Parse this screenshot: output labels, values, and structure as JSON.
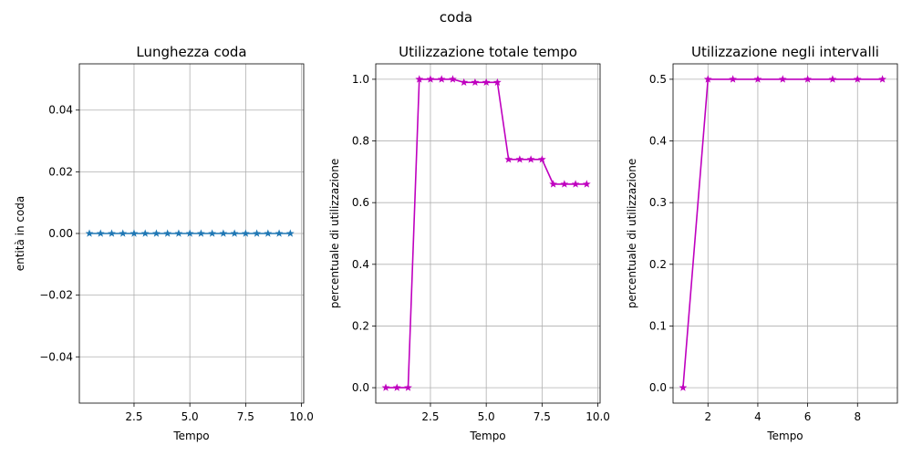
{
  "figure_title": "coda",
  "chart_data": [
    {
      "type": "line",
      "title": "Lunghezza coda",
      "xlabel": "Tempo",
      "ylabel": "entità in coda",
      "xlim": [
        0.05,
        10.1
      ],
      "ylim": [
        -0.055,
        0.055
      ],
      "xticks": [
        2.5,
        5.0,
        7.5,
        10.0
      ],
      "xtick_labels": [
        "2.5",
        "5.0",
        "7.5",
        "10.0"
      ],
      "yticks": [
        -0.04,
        -0.02,
        0.0,
        0.02,
        0.04
      ],
      "ytick_labels": [
        "−0.04",
        "−0.02",
        "0.00",
        "0.02",
        "0.04"
      ],
      "grid": true,
      "color": "#1f77b4",
      "marker": "star",
      "series": [
        {
          "x": [
            0.5,
            1.0,
            1.5,
            2.0,
            2.5,
            3.0,
            3.5,
            4.0,
            4.5,
            5.0,
            5.5,
            6.0,
            6.5,
            7.0,
            7.5,
            8.0,
            8.5,
            9.0,
            9.5
          ],
          "y": [
            0,
            0,
            0,
            0,
            0,
            0,
            0,
            0,
            0,
            0,
            0,
            0,
            0,
            0,
            0,
            0,
            0,
            0,
            0
          ]
        }
      ]
    },
    {
      "type": "line",
      "title": "Utilizzazione totale tempo",
      "xlabel": "Tempo",
      "ylabel": "percentuale di utilizzazione",
      "xlim": [
        0.05,
        10.1
      ],
      "ylim": [
        -0.05,
        1.05
      ],
      "xticks": [
        2.5,
        5.0,
        7.5,
        10.0
      ],
      "xtick_labels": [
        "2.5",
        "5.0",
        "7.5",
        "10.0"
      ],
      "yticks": [
        0.0,
        0.2,
        0.4,
        0.6,
        0.8,
        1.0
      ],
      "ytick_labels": [
        "0.0",
        "0.2",
        "0.4",
        "0.6",
        "0.8",
        "1.0"
      ],
      "grid": true,
      "color": "#bf00bf",
      "marker": "star",
      "series": [
        {
          "x": [
            0.5,
            1.0,
            1.5,
            2.0,
            2.5,
            3.0,
            3.5,
            4.0,
            4.5,
            5.0,
            5.5,
            6.0,
            6.5,
            7.0,
            7.5,
            8.0,
            8.5,
            9.0,
            9.5
          ],
          "y": [
            0,
            0,
            0,
            1.0,
            1.0,
            1.0,
            1.0,
            0.99,
            0.99,
            0.99,
            0.99,
            0.74,
            0.74,
            0.74,
            0.74,
            0.66,
            0.66,
            0.66,
            0.66
          ]
        }
      ]
    },
    {
      "type": "line",
      "title": "Utilizzazione negli intervalli",
      "xlabel": "Tempo",
      "ylabel": "percentuale di utilizzazione",
      "xlim": [
        0.6,
        9.6
      ],
      "ylim": [
        -0.025,
        0.525
      ],
      "xticks": [
        2,
        4,
        6,
        8
      ],
      "xtick_labels": [
        "2",
        "4",
        "6",
        "8"
      ],
      "yticks": [
        0.0,
        0.1,
        0.2,
        0.3,
        0.4,
        0.5
      ],
      "ytick_labels": [
        "0.0",
        "0.1",
        "0.2",
        "0.3",
        "0.4",
        "0.5"
      ],
      "grid": true,
      "color": "#bf00bf",
      "marker": "star",
      "series": [
        {
          "x": [
            1.0,
            2.0,
            3.0,
            4.0,
            5.0,
            6.0,
            7.0,
            8.0,
            9.0
          ],
          "y": [
            0,
            0.5,
            0.5,
            0.5,
            0.5,
            0.5,
            0.5,
            0.5,
            0.5
          ]
        }
      ]
    }
  ]
}
